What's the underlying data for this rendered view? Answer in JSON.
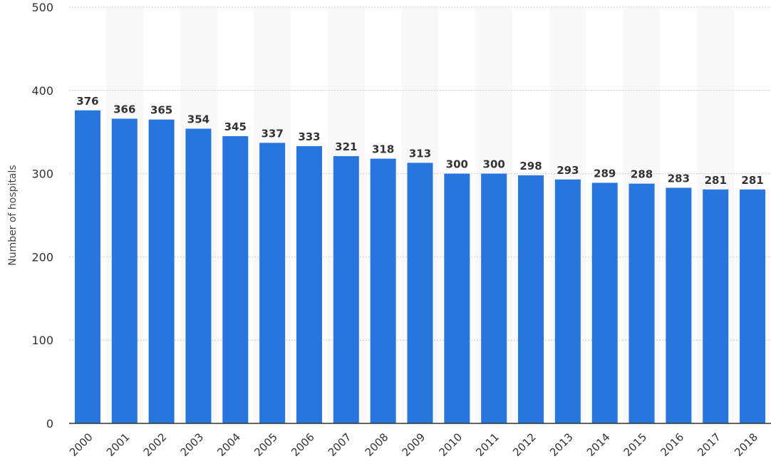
{
  "chart_data": {
    "type": "bar",
    "title": "",
    "xlabel": "",
    "ylabel": "Number of hospitals",
    "categories": [
      "2000",
      "2001",
      "2002",
      "2003",
      "2004",
      "2005",
      "2006",
      "2007",
      "2008",
      "2009",
      "2010",
      "2011",
      "2012",
      "2013",
      "2014",
      "2015",
      "2016",
      "2017",
      "2018"
    ],
    "values": [
      376,
      366,
      365,
      354,
      345,
      337,
      333,
      321,
      318,
      313,
      300,
      300,
      298,
      293,
      289,
      288,
      283,
      281,
      281
    ],
    "ylim": [
      0,
      500
    ],
    "yticks": [
      0,
      100,
      200,
      300,
      400,
      500
    ],
    "grid": true,
    "bar_color": "#2876dd",
    "band_color": "#f8f8f8",
    "grid_color": "#cccccc"
  }
}
